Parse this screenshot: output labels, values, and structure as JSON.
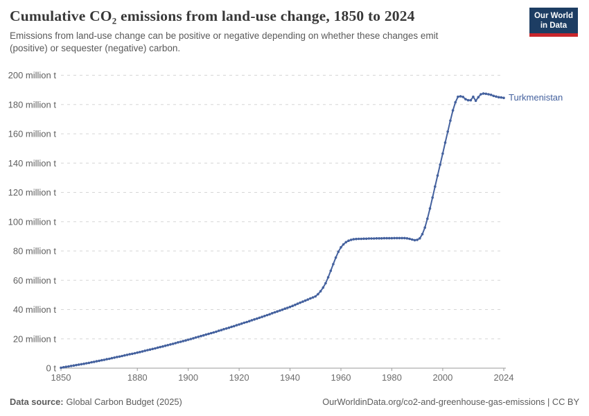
{
  "header": {
    "title": "Cumulative CO₂ emissions from land-use change, 1850 to 2024",
    "subtitle": "Emissions from land-use change can be positive or negative depending on whether these changes emit (positive) or sequester (negative) carbon.",
    "logo": {
      "line1": "Our World",
      "line2": "in Data"
    }
  },
  "colors": {
    "accent": "#44619E",
    "logo_navy": "#1d3d63",
    "logo_red": "#c9262c"
  },
  "footer": {
    "source_label": "Data source:",
    "source_value": "Global Carbon Budget (2025)",
    "credit": "OurWorldinData.org/co2-and-greenhouse-gas-emissions | CC BY"
  },
  "chart_data": {
    "type": "line",
    "title": "Cumulative CO₂ emissions from land-use change, 1850 to 2024",
    "xlabel": "",
    "ylabel": "",
    "xlim": [
      1850,
      2024
    ],
    "ylim": [
      0,
      200
    ],
    "grid": "dashed-horizontal",
    "legend_position": "end-of-line-label",
    "x_ticks": [
      1850,
      1880,
      1900,
      1920,
      1940,
      1960,
      1980,
      2000,
      2024
    ],
    "y_ticks": [
      {
        "value": 0,
        "label": "0 t"
      },
      {
        "value": 20,
        "label": "20 million t"
      },
      {
        "value": 40,
        "label": "40 million t"
      },
      {
        "value": 60,
        "label": "60 million t"
      },
      {
        "value": 80,
        "label": "80 million t"
      },
      {
        "value": 100,
        "label": "100 million t"
      },
      {
        "value": 120,
        "label": "120 million t"
      },
      {
        "value": 140,
        "label": "140 million t"
      },
      {
        "value": 160,
        "label": "160 million t"
      },
      {
        "value": 180,
        "label": "180 million t"
      },
      {
        "value": 200,
        "label": "200 million t"
      }
    ],
    "series": [
      {
        "name": "Turkmenistan",
        "color": "#44619E",
        "unit": "million t",
        "points": [
          [
            1850,
            0.3
          ],
          [
            1851,
            0.6
          ],
          [
            1852,
            0.9
          ],
          [
            1853,
            1.2
          ],
          [
            1854,
            1.5
          ],
          [
            1855,
            1.8
          ],
          [
            1856,
            2.1
          ],
          [
            1857,
            2.4
          ],
          [
            1858,
            2.7
          ],
          [
            1859,
            3.0
          ],
          [
            1860,
            3.3
          ],
          [
            1861,
            3.6
          ],
          [
            1862,
            4.0
          ],
          [
            1863,
            4.3
          ],
          [
            1864,
            4.7
          ],
          [
            1865,
            5.0
          ],
          [
            1866,
            5.4
          ],
          [
            1867,
            5.7
          ],
          [
            1868,
            6.1
          ],
          [
            1869,
            6.4
          ],
          [
            1870,
            6.8
          ],
          [
            1871,
            7.2
          ],
          [
            1872,
            7.6
          ],
          [
            1873,
            7.9
          ],
          [
            1874,
            8.3
          ],
          [
            1875,
            8.7
          ],
          [
            1876,
            9.1
          ],
          [
            1877,
            9.5
          ],
          [
            1878,
            9.8
          ],
          [
            1879,
            10.2
          ],
          [
            1880,
            10.6
          ],
          [
            1881,
            11.0
          ],
          [
            1882,
            11.4
          ],
          [
            1883,
            11.9
          ],
          [
            1884,
            12.3
          ],
          [
            1885,
            12.7
          ],
          [
            1886,
            13.1
          ],
          [
            1887,
            13.5
          ],
          [
            1888,
            14.0
          ],
          [
            1889,
            14.4
          ],
          [
            1890,
            14.8
          ],
          [
            1891,
            15.3
          ],
          [
            1892,
            15.7
          ],
          [
            1893,
            16.2
          ],
          [
            1894,
            16.6
          ],
          [
            1895,
            17.1
          ],
          [
            1896,
            17.6
          ],
          [
            1897,
            18.0
          ],
          [
            1898,
            18.5
          ],
          [
            1899,
            18.9
          ],
          [
            1900,
            19.4
          ],
          [
            1901,
            19.9
          ],
          [
            1902,
            20.4
          ],
          [
            1903,
            20.9
          ],
          [
            1904,
            21.4
          ],
          [
            1905,
            21.9
          ],
          [
            1906,
            22.4
          ],
          [
            1907,
            22.9
          ],
          [
            1908,
            23.4
          ],
          [
            1909,
            23.9
          ],
          [
            1910,
            24.4
          ],
          [
            1911,
            24.9
          ],
          [
            1912,
            25.5
          ],
          [
            1913,
            26.0
          ],
          [
            1914,
            26.6
          ],
          [
            1915,
            27.1
          ],
          [
            1916,
            27.6
          ],
          [
            1917,
            28.2
          ],
          [
            1918,
            28.7
          ],
          [
            1919,
            29.3
          ],
          [
            1920,
            29.8
          ],
          [
            1921,
            30.4
          ],
          [
            1922,
            31.0
          ],
          [
            1923,
            31.5
          ],
          [
            1924,
            32.1
          ],
          [
            1925,
            32.7
          ],
          [
            1926,
            33.3
          ],
          [
            1927,
            33.8
          ],
          [
            1928,
            34.4
          ],
          [
            1929,
            35.0
          ],
          [
            1930,
            35.6
          ],
          [
            1931,
            36.2
          ],
          [
            1932,
            36.8
          ],
          [
            1933,
            37.5
          ],
          [
            1934,
            38.1
          ],
          [
            1935,
            38.7
          ],
          [
            1936,
            39.3
          ],
          [
            1937,
            39.9
          ],
          [
            1938,
            40.6
          ],
          [
            1939,
            41.2
          ],
          [
            1940,
            41.8
          ],
          [
            1941,
            42.5
          ],
          [
            1942,
            43.2
          ],
          [
            1943,
            44.0
          ],
          [
            1944,
            44.7
          ],
          [
            1945,
            45.4
          ],
          [
            1946,
            46.1
          ],
          [
            1947,
            46.8
          ],
          [
            1948,
            47.6
          ],
          [
            1949,
            48.3
          ],
          [
            1950,
            49.0
          ],
          [
            1951,
            50.5
          ],
          [
            1952,
            52.5
          ],
          [
            1953,
            55.0
          ],
          [
            1954,
            58.0
          ],
          [
            1955,
            62.0
          ],
          [
            1956,
            66.5
          ],
          [
            1957,
            71.0
          ],
          [
            1958,
            75.5
          ],
          [
            1959,
            79.5
          ],
          [
            1960,
            82.5
          ],
          [
            1961,
            84.5
          ],
          [
            1962,
            86.0
          ],
          [
            1963,
            87.0
          ],
          [
            1964,
            87.6
          ],
          [
            1965,
            88.0
          ],
          [
            1966,
            88.2
          ],
          [
            1967,
            88.3
          ],
          [
            1968,
            88.3
          ],
          [
            1969,
            88.4
          ],
          [
            1970,
            88.4
          ],
          [
            1971,
            88.5
          ],
          [
            1972,
            88.5
          ],
          [
            1973,
            88.5
          ],
          [
            1974,
            88.6
          ],
          [
            1975,
            88.6
          ],
          [
            1976,
            88.6
          ],
          [
            1977,
            88.7
          ],
          [
            1978,
            88.7
          ],
          [
            1979,
            88.7
          ],
          [
            1980,
            88.7
          ],
          [
            1981,
            88.8
          ],
          [
            1982,
            88.8
          ],
          [
            1983,
            88.8
          ],
          [
            1984,
            88.8
          ],
          [
            1985,
            88.8
          ],
          [
            1986,
            88.6
          ],
          [
            1987,
            88.3
          ],
          [
            1988,
            87.8
          ],
          [
            1989,
            87.4
          ],
          [
            1990,
            87.6
          ],
          [
            1991,
            88.6
          ],
          [
            1992,
            91.5
          ],
          [
            1993,
            96.0
          ],
          [
            1994,
            102.0
          ],
          [
            1995,
            109.0
          ],
          [
            1996,
            116.5
          ],
          [
            1997,
            124.0
          ],
          [
            1998,
            131.5
          ],
          [
            1999,
            139.0
          ],
          [
            2000,
            146.5
          ],
          [
            2001,
            154.0
          ],
          [
            2002,
            161.5
          ],
          [
            2003,
            169.0
          ],
          [
            2004,
            176.0
          ],
          [
            2005,
            181.5
          ],
          [
            2006,
            185.3
          ],
          [
            2007,
            185.6
          ],
          [
            2008,
            185.2
          ],
          [
            2009,
            183.6
          ],
          [
            2010,
            182.9
          ],
          [
            2011,
            182.9
          ],
          [
            2012,
            185.3
          ],
          [
            2013,
            182.6
          ],
          [
            2014,
            185.0
          ],
          [
            2015,
            187.0
          ],
          [
            2016,
            187.5
          ],
          [
            2017,
            187.3
          ],
          [
            2018,
            187.0
          ],
          [
            2019,
            186.6
          ],
          [
            2020,
            185.9
          ],
          [
            2021,
            185.4
          ],
          [
            2022,
            185.0
          ],
          [
            2023,
            184.8
          ],
          [
            2024,
            184.5
          ]
        ]
      }
    ]
  }
}
